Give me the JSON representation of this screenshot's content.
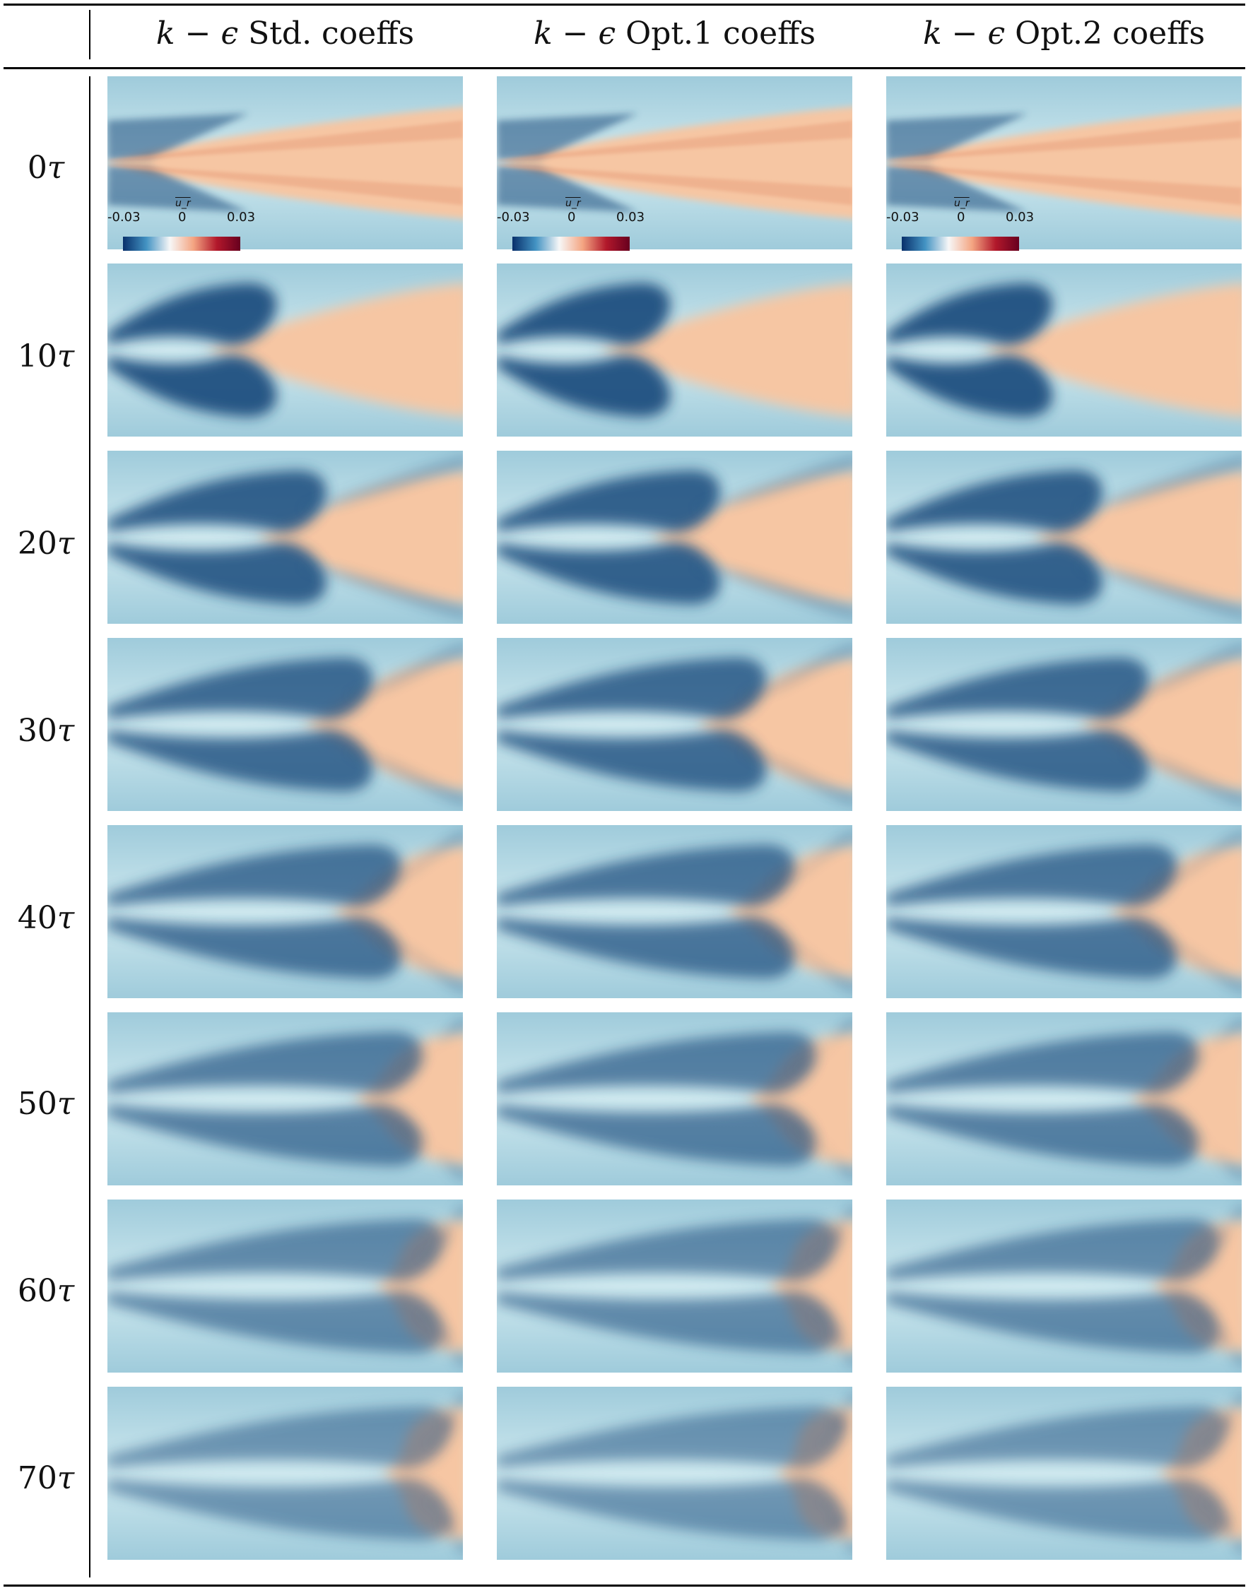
{
  "header": {
    "columns": [
      {
        "prefix": "k",
        "op": " − ",
        "symbol": "ϵ",
        "rest": " Std.  coeffs"
      },
      {
        "prefix": "k",
        "op": " − ",
        "symbol": "ϵ",
        "rest": " Opt.1 coeffs"
      },
      {
        "prefix": "k",
        "op": " − ",
        "symbol": "ϵ",
        "rest": " Opt.2 coeffs"
      }
    ]
  },
  "rows": [
    {
      "num": "0",
      "unit": "τ",
      "merge": 0.0
    },
    {
      "num": "10",
      "unit": "τ",
      "merge": 0.28
    },
    {
      "num": "20",
      "unit": "τ",
      "merge": 0.42
    },
    {
      "num": "30",
      "unit": "τ",
      "merge": 0.55
    },
    {
      "num": "40",
      "unit": "τ",
      "merge": 0.63
    },
    {
      "num": "50",
      "unit": "τ",
      "merge": 0.69
    },
    {
      "num": "60",
      "unit": "τ",
      "merge": 0.75
    },
    {
      "num": "70",
      "unit": "τ",
      "merge": 0.77
    }
  ],
  "colorbar": {
    "title": "u_r",
    "min_label": "-0.03",
    "mid_label": "0",
    "max_label": "0.03",
    "colors": [
      "#08306b",
      "#4393c3",
      "#f7f7f7",
      "#f4a582",
      "#b2182b",
      "#67001f"
    ]
  },
  "field_colors": {
    "background": "#a9d3df",
    "negative": "#1d4e7e",
    "positive": "#f6c6a3",
    "center": "#fff7e6"
  }
}
